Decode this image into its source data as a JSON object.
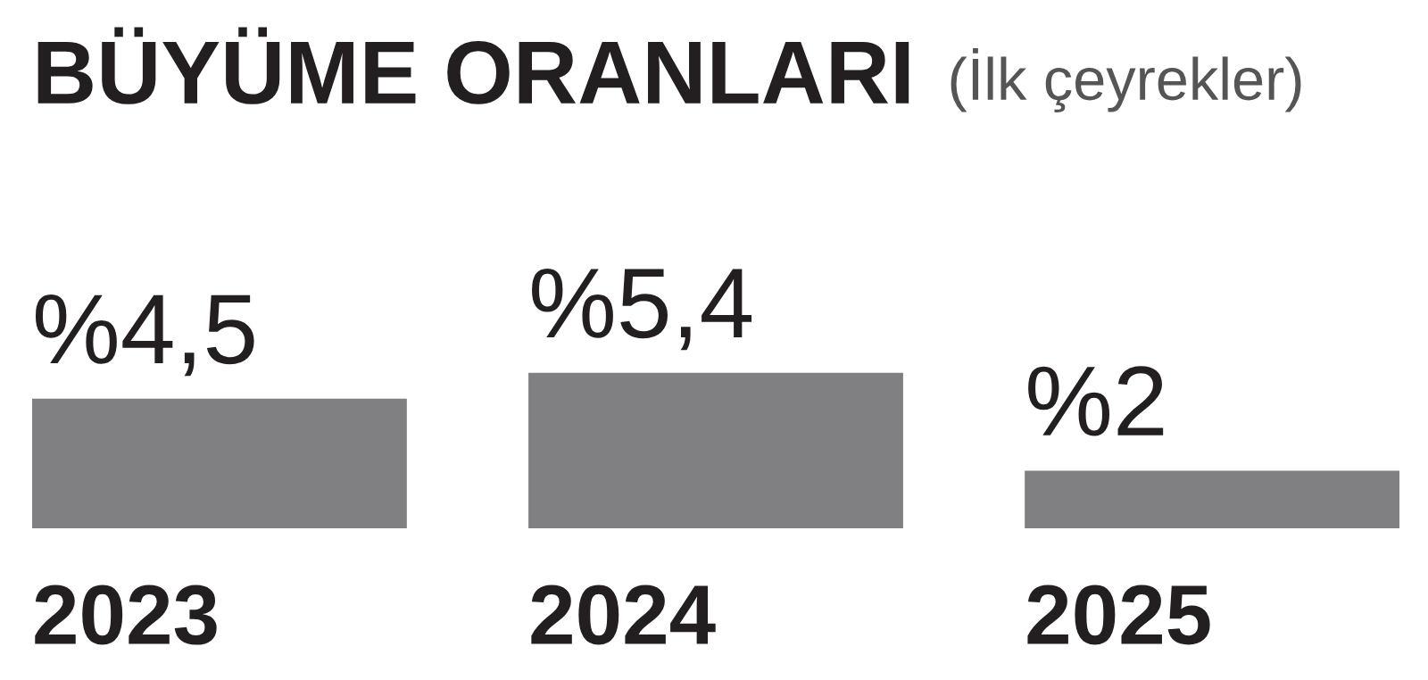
{
  "chart_data": {
    "type": "bar",
    "title": "BÜYÜME ORANLARI",
    "subtitle": "(İlk çeyrekler)",
    "categories": [
      "2023",
      "2024",
      "2025"
    ],
    "values": [
      4.5,
      5.4,
      2
    ],
    "value_labels": [
      "%4,5",
      "%5,4",
      "%2"
    ],
    "color": "#808083",
    "grid": false,
    "legend": false
  }
}
